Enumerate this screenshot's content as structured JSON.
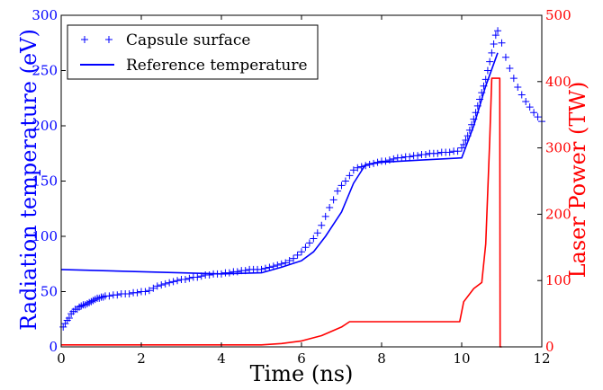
{
  "chart_data": {
    "type": "line",
    "xlabel": "Time (ns)",
    "ylabel_left": "Radiation temperature (eV)",
    "ylabel_right": "Laser Power (TW)",
    "xlim": [
      0,
      12
    ],
    "ylim_left": [
      0,
      300
    ],
    "ylim_right": [
      0,
      500
    ],
    "x_ticks": [
      "0",
      "2",
      "4",
      "6",
      "8",
      "10",
      "12"
    ],
    "y_left_ticks": [
      "0",
      "50",
      "100",
      "150",
      "200",
      "250",
      "300"
    ],
    "y_right_ticks": [
      "0",
      "100",
      "200",
      "300",
      "400",
      "500"
    ],
    "grid": false,
    "legend_position": "top-left",
    "colors": {
      "temperature": "#0000ff",
      "laser": "#ff0000",
      "axes": "#000000"
    },
    "series": [
      {
        "name": "Capsule surface",
        "axis": "left",
        "style": "markers-plus",
        "x": [
          0.05,
          0.1,
          0.15,
          0.2,
          0.25,
          0.3,
          0.35,
          0.4,
          0.45,
          0.5,
          0.55,
          0.6,
          0.65,
          0.7,
          0.75,
          0.8,
          0.85,
          0.9,
          0.95,
          1.0,
          1.05,
          1.1,
          1.2,
          1.3,
          1.4,
          1.5,
          1.6,
          1.7,
          1.8,
          1.9,
          2.0,
          2.1,
          2.2,
          2.3,
          2.4,
          2.5,
          2.6,
          2.7,
          2.8,
          2.9,
          3.0,
          3.1,
          3.2,
          3.3,
          3.4,
          3.5,
          3.6,
          3.7,
          3.8,
          3.9,
          4.0,
          4.1,
          4.2,
          4.3,
          4.4,
          4.5,
          4.6,
          4.7,
          4.8,
          4.9,
          5.0,
          5.1,
          5.2,
          5.3,
          5.4,
          5.5,
          5.6,
          5.7,
          5.8,
          5.9,
          6.0,
          6.1,
          6.2,
          6.3,
          6.4,
          6.5,
          6.6,
          6.7,
          6.8,
          6.9,
          7.0,
          7.1,
          7.2,
          7.3,
          7.4,
          7.5,
          7.6,
          7.7,
          7.8,
          7.9,
          8.0,
          8.1,
          8.2,
          8.3,
          8.4,
          8.5,
          8.6,
          8.7,
          8.8,
          8.9,
          9.0,
          9.1,
          9.2,
          9.3,
          9.4,
          9.5,
          9.6,
          9.7,
          9.8,
          9.9,
          10.0,
          10.05,
          10.1,
          10.15,
          10.2,
          10.25,
          10.3,
          10.35,
          10.4,
          10.45,
          10.5,
          10.55,
          10.6,
          10.65,
          10.7,
          10.75,
          10.8,
          10.85,
          10.9,
          11.0,
          11.1,
          11.2,
          11.3,
          11.4,
          11.5,
          11.6,
          11.7,
          11.8,
          11.9,
          12.0
        ],
        "y": [
          18,
          21,
          24,
          26,
          30,
          32,
          34,
          34,
          36,
          37,
          38,
          38,
          39,
          40,
          41,
          42,
          43,
          44,
          44,
          45,
          45,
          46,
          46,
          47,
          47,
          48,
          48,
          48,
          49,
          49,
          50,
          50,
          51,
          53,
          55,
          56,
          57,
          58,
          59,
          60,
          61,
          61,
          62,
          63,
          63,
          64,
          65,
          65,
          66,
          66,
          66,
          67,
          67,
          68,
          68,
          69,
          69,
          70,
          70,
          70,
          70,
          71,
          72,
          73,
          74,
          75,
          76,
          78,
          80,
          83,
          86,
          90,
          94,
          98,
          103,
          110,
          118,
          126,
          133,
          141,
          146,
          150,
          155,
          160,
          162,
          163,
          164,
          165,
          166,
          167,
          168,
          168,
          169,
          170,
          171,
          171,
          172,
          172,
          173,
          173,
          174,
          174,
          175,
          175,
          175,
          176,
          176,
          176,
          177,
          177,
          180,
          183,
          187,
          191,
          196,
          201,
          206,
          212,
          218,
          224,
          230,
          236,
          242,
          250,
          258,
          266,
          274,
          282,
          286,
          275,
          262,
          252,
          243,
          235,
          228,
          222,
          217,
          212,
          208,
          204
        ]
      },
      {
        "name": "Reference temperature",
        "axis": "left",
        "style": "line",
        "x": [
          0,
          4,
          5,
          5.5,
          6,
          6.3,
          6.6,
          7.0,
          7.3,
          7.6,
          8.0,
          9.0,
          10.0,
          10.3,
          10.6,
          10.9
        ],
        "y": [
          70,
          66,
          67,
          72,
          78,
          86,
          100,
          122,
          148,
          165,
          167,
          169,
          171,
          200,
          236,
          266
        ]
      },
      {
        "axis": "right",
        "style": "line",
        "x": [
          0,
          5.0,
          5.5,
          6.0,
          6.5,
          7.0,
          7.2,
          8.0,
          9.0,
          9.95,
          10.05,
          10.3,
          10.5,
          10.6,
          10.7,
          10.75,
          10.8,
          10.95,
          10.96,
          11.0
        ],
        "y": [
          3,
          3,
          5,
          9,
          17,
          30,
          38,
          38,
          38,
          38,
          68,
          88,
          97,
          155,
          310,
          405,
          405,
          405,
          0,
          0
        ]
      }
    ]
  }
}
